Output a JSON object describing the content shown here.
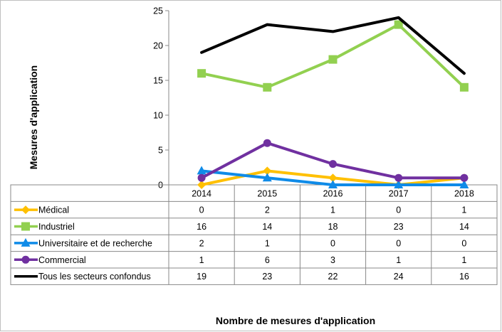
{
  "chart_data": {
    "type": "line",
    "ylabel": "Mesures d'application",
    "xlabel": "Nombre  de mesures d'application",
    "ylim": [
      0,
      25
    ],
    "yticks": [
      0,
      5,
      10,
      15,
      20,
      25
    ],
    "categories": [
      "2014",
      "2015",
      "2016",
      "2017",
      "2018"
    ],
    "grid": false,
    "legend": "data-table-left",
    "series": [
      {
        "name": "Médical",
        "values": [
          0,
          2,
          1,
          0,
          1
        ],
        "color": "#FFC000",
        "marker": "diamond"
      },
      {
        "name": "Industriel",
        "values": [
          16,
          14,
          18,
          23,
          14
        ],
        "color": "#92D050",
        "marker": "square"
      },
      {
        "name": "Universitaire et de recherche",
        "values": [
          2,
          1,
          0,
          0,
          0
        ],
        "color": "#0F8BE8",
        "marker": "triangle"
      },
      {
        "name": "Commercial",
        "values": [
          1,
          6,
          3,
          1,
          1
        ],
        "color": "#7030A0",
        "marker": "circle"
      },
      {
        "name": "Tous les secteurs confondus",
        "values": [
          19,
          23,
          22,
          24,
          16
        ],
        "color": "#000000",
        "marker": "none"
      }
    ]
  }
}
